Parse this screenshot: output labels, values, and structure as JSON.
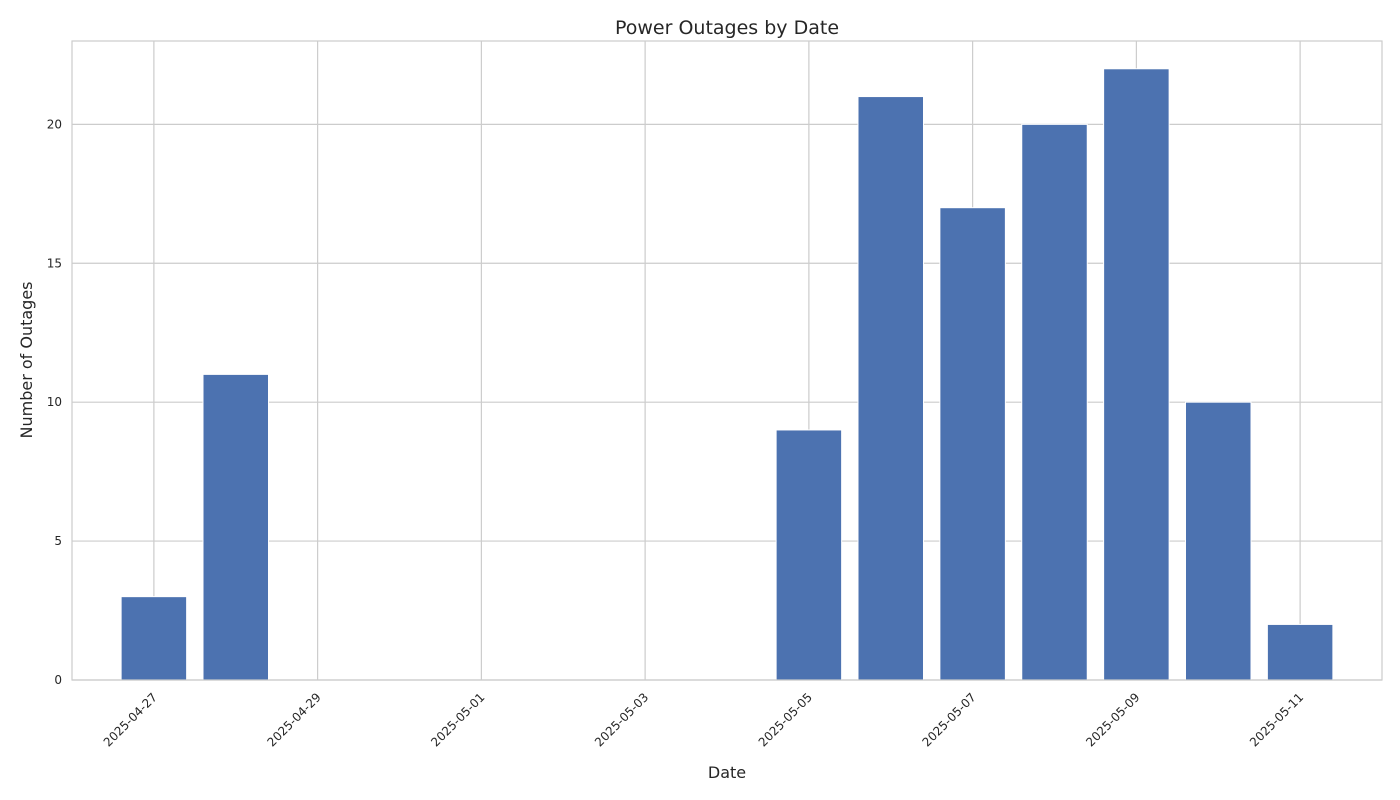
{
  "chart_data": {
    "type": "bar",
    "title": "Power Outages by Date",
    "xlabel": "Date",
    "ylabel": "Number of Outages",
    "bar_color": "#4c72b0",
    "grid": true,
    "x": [
      "2025-04-27",
      "2025-04-28",
      "2025-05-05",
      "2025-05-06",
      "2025-05-07",
      "2025-05-08",
      "2025-05-09",
      "2025-05-10",
      "2025-05-11"
    ],
    "values": [
      3,
      11,
      9,
      21,
      17,
      20,
      22,
      10,
      2
    ],
    "xlim": [
      "2025-04-26",
      "2025-05-12"
    ],
    "ylim": [
      0,
      23
    ],
    "xticks": [
      "2025-04-27",
      "2025-04-29",
      "2025-05-01",
      "2025-05-03",
      "2025-05-05",
      "2025-05-07",
      "2025-05-09",
      "2025-05-11"
    ],
    "yticks": [
      0,
      5,
      10,
      15,
      20
    ]
  }
}
